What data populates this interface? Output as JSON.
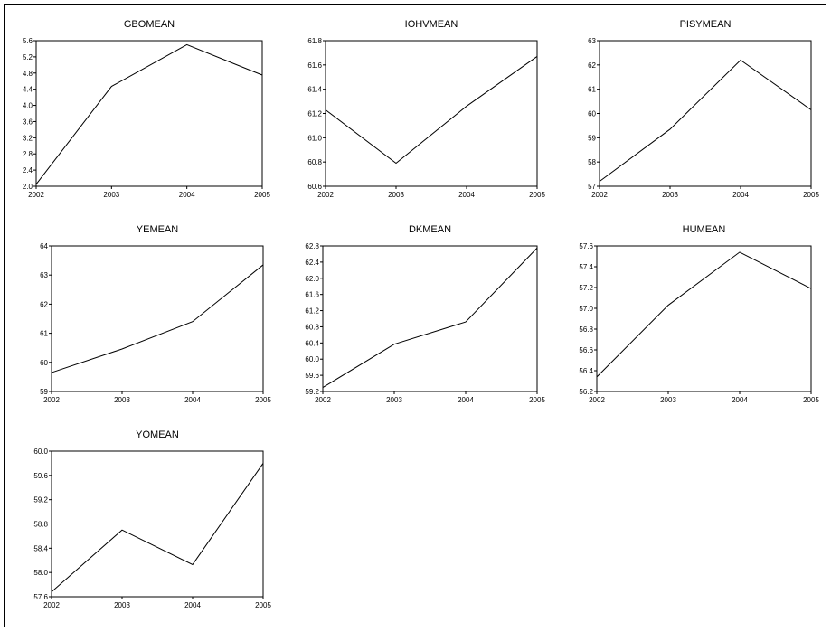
{
  "chart_data": [
    {
      "type": "line",
      "title": "GBOMEAN",
      "x": [
        "2002",
        "2003",
        "2004",
        "2005"
      ],
      "series": [
        {
          "values": [
            2.05,
            4.47,
            5.5,
            4.75
          ]
        }
      ],
      "ylim": [
        2.0,
        5.6
      ],
      "yticks": [
        "2.0",
        "2.4",
        "2.8",
        "3.2",
        "3.6",
        "4.0",
        "4.4",
        "4.8",
        "5.2",
        "5.6"
      ]
    },
    {
      "type": "line",
      "title": "IOHVMEAN",
      "x": [
        "2002",
        "2003",
        "2004",
        "2005"
      ],
      "series": [
        {
          "values": [
            61.23,
            60.79,
            61.26,
            61.67
          ]
        }
      ],
      "ylim": [
        60.6,
        61.8
      ],
      "yticks": [
        "60.6",
        "60.8",
        "61.0",
        "61.2",
        "61.4",
        "61.6",
        "61.8"
      ]
    },
    {
      "type": "line",
      "title": "PISYMEAN",
      "x": [
        "2002",
        "2003",
        "2004",
        "2005"
      ],
      "series": [
        {
          "values": [
            57.2,
            59.35,
            62.2,
            60.15
          ]
        }
      ],
      "ylim": [
        57,
        63
      ],
      "yticks": [
        "57",
        "58",
        "59",
        "60",
        "61",
        "62",
        "63"
      ]
    },
    {
      "type": "line",
      "title": "YEMEAN",
      "x": [
        "2002",
        "2003",
        "2004",
        "2005"
      ],
      "series": [
        {
          "values": [
            59.65,
            60.46,
            61.4,
            63.35
          ]
        }
      ],
      "ylim": [
        59,
        64
      ],
      "yticks": [
        "59",
        "60",
        "61",
        "62",
        "63",
        "64"
      ]
    },
    {
      "type": "line",
      "title": "DKMEAN",
      "x": [
        "2002",
        "2003",
        "2004",
        "2005"
      ],
      "series": [
        {
          "values": [
            59.3,
            60.37,
            60.92,
            62.75
          ]
        }
      ],
      "ylim": [
        59.2,
        62.8
      ],
      "yticks": [
        "59.2",
        "59.6",
        "60.0",
        "60.4",
        "60.8",
        "61.2",
        "61.6",
        "62.0",
        "62.4",
        "62.8"
      ]
    },
    {
      "type": "line",
      "title": "HUMEAN",
      "x": [
        "2002",
        "2003",
        "2004",
        "2005"
      ],
      "series": [
        {
          "values": [
            56.34,
            57.03,
            57.54,
            57.19
          ]
        }
      ],
      "ylim": [
        56.2,
        57.6
      ],
      "yticks": [
        "56.2",
        "56.4",
        "56.6",
        "56.8",
        "57.0",
        "57.2",
        "57.4",
        "57.6"
      ]
    },
    {
      "type": "line",
      "title": "YOMEAN",
      "x": [
        "2002",
        "2003",
        "2004",
        "2005"
      ],
      "series": [
        {
          "values": [
            57.68,
            58.7,
            58.13,
            59.8
          ]
        }
      ],
      "ylim": [
        57.6,
        60.0
      ],
      "yticks": [
        "57.6",
        "58.0",
        "58.4",
        "58.8",
        "59.2",
        "59.6",
        "60.0"
      ]
    }
  ]
}
